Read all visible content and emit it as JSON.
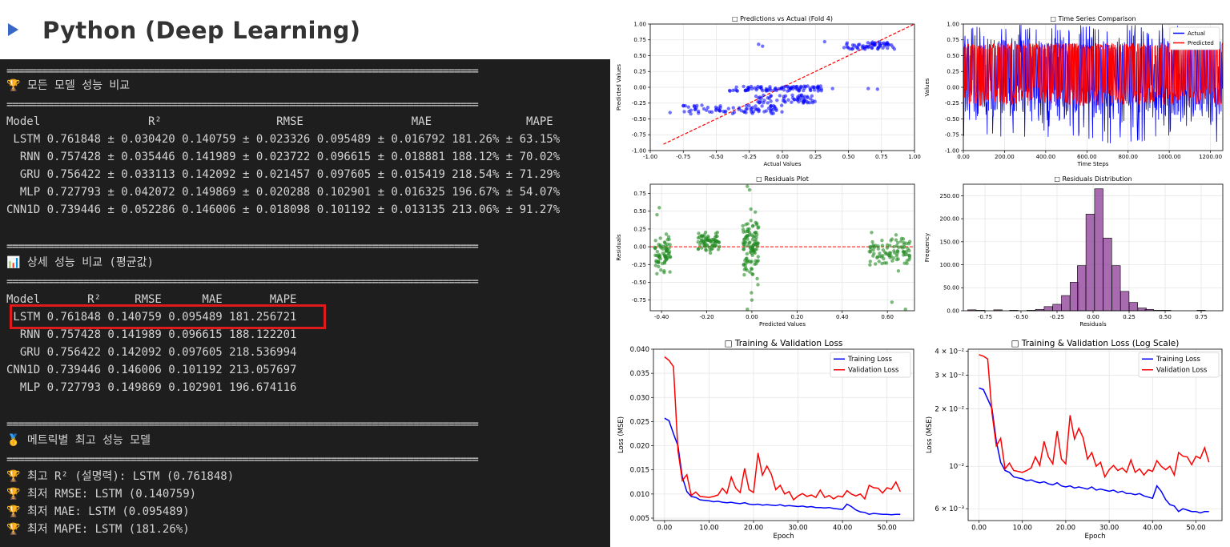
{
  "slide": {
    "title": "Python (Deep Learning)"
  },
  "terminal": {
    "separator": "================================================================================",
    "section1_title": "🏆 모든 모델 성능 비교",
    "table1_header": "Model                R²                 RMSE                MAE              MAPE",
    "table1_rows": [
      " LSTM 0.761848 ± 0.030420 0.140759 ± 0.023326 0.095489 ± 0.016792 181.26% ± 63.15%",
      "  RNN 0.757428 ± 0.035446 0.141989 ± 0.023722 0.096615 ± 0.018881 188.12% ± 70.02%",
      "  GRU 0.756422 ± 0.033113 0.142092 ± 0.021457 0.097605 ± 0.015419 218.54% ± 71.29%",
      "  MLP 0.727793 ± 0.042072 0.149869 ± 0.020288 0.102901 ± 0.016325 196.67% ± 54.07%",
      "CNN1D 0.739446 ± 0.052286 0.146006 ± 0.018098 0.101192 ± 0.013135 213.06% ± 91.27%"
    ],
    "section2_title": "📊 상세 성능 비교 (평균값)",
    "table2_header": "Model       R²     RMSE      MAE       MAPE",
    "table2_rows": [
      " LSTM 0.761848 0.140759 0.095489 181.256721",
      "  RNN 0.757428 0.141989 0.096615 188.122201",
      "  GRU 0.756422 0.142092 0.097605 218.536994",
      "CNN1D 0.739446 0.146006 0.101192 213.057697",
      "  MLP 0.727793 0.149869 0.102901 196.674116"
    ],
    "section3_title": "🥇 메트릭별 최고 성능 모델",
    "best_lines": [
      "🏆 최고 R² (설명력): LSTM (0.761848)",
      "🏆 최저 RMSE: LSTM (0.140759)",
      "🏆 최저 MAE: LSTM (0.095489)",
      "🏆 최저 MAPE: LSTM (181.26%)"
    ]
  },
  "colors": {
    "highlight": "#e0191b",
    "terminal_bg": "#1e1e1e",
    "blue": "#0000ff",
    "red": "#ff0000",
    "green": "#228b22",
    "purple": "#8b3a96"
  },
  "chart_data": [
    {
      "id": "pred-vs-actual",
      "type": "scatter",
      "title": "□ Predictions vs Actual (Fold 4)",
      "xlabel": "Actual Values",
      "ylabel": "Predicted Values",
      "xlim": [
        -1.0,
        1.0
      ],
      "ylim": [
        -1.0,
        1.0
      ],
      "xticks": [
        -1.0,
        -0.75,
        -0.5,
        -0.25,
        0.0,
        0.25,
        0.5,
        0.75,
        1.0
      ],
      "yticks": [
        -1.0,
        -0.75,
        -0.5,
        -0.25,
        0.0,
        0.25,
        0.5,
        0.75,
        1.0
      ],
      "clusters": [
        {
          "x": [
            -0.75,
            0.0
          ],
          "y": [
            -0.42,
            -0.28
          ],
          "n": 80
        },
        {
          "x": [
            -0.4,
            0.3
          ],
          "y": [
            -0.06,
            0.02
          ],
          "n": 90
        },
        {
          "x": [
            -0.2,
            0.25
          ],
          "y": [
            -0.25,
            -0.12
          ],
          "n": 60
        },
        {
          "x": [
            0.45,
            0.85
          ],
          "y": [
            0.6,
            0.72
          ],
          "n": 60
        }
      ],
      "extra_points": [
        [
          -0.85,
          -0.4
        ],
        [
          -0.18,
          0.68
        ],
        [
          -0.15,
          0.65
        ],
        [
          0.32,
          0.72
        ],
        [
          0.38,
          -0.02
        ],
        [
          0.65,
          -0.02
        ],
        [
          0.72,
          -0.03
        ],
        [
          0.28,
          -0.03
        ]
      ],
      "grid": true
    },
    {
      "id": "time-series",
      "type": "line",
      "title": "□ Time Series Comparison",
      "xlabel": "Time Steps",
      "ylabel": "Values",
      "xlim": [
        0,
        1260
      ],
      "ylim": [
        -1.0,
        1.0
      ],
      "xticks": [
        0,
        200,
        400,
        600,
        800,
        1000,
        1200
      ],
      "yticks": [
        -1.0,
        -0.75,
        -0.5,
        -0.25,
        0.0,
        0.25,
        0.5,
        0.75,
        1.0
      ],
      "series": [
        {
          "name": "Actual"
        },
        {
          "name": "Predicted"
        }
      ],
      "legend": "top-right",
      "grid": true
    },
    {
      "id": "residuals-plot",
      "type": "scatter",
      "title": "□ Residuals Plot",
      "xlabel": "Predicted Values",
      "ylabel": "Residuals",
      "xlim": [
        -0.45,
        0.72
      ],
      "ylim": [
        -0.9,
        0.88
      ],
      "xticks": [
        -0.4,
        -0.2,
        0.0,
        0.2,
        0.4,
        0.6
      ],
      "yticks": [
        -0.75,
        -0.5,
        -0.25,
        0.0,
        0.25,
        0.5,
        0.75
      ],
      "clusters": [
        {
          "x": [
            -0.43,
            -0.36
          ],
          "y": [
            -0.35,
            0.15
          ],
          "n": 70
        },
        {
          "x": [
            -0.24,
            -0.14
          ],
          "y": [
            -0.05,
            0.22
          ],
          "n": 70
        },
        {
          "x": [
            -0.04,
            0.03
          ],
          "y": [
            -0.45,
            0.45
          ],
          "n": 110
        },
        {
          "x": [
            0.52,
            0.7
          ],
          "y": [
            -0.3,
            0.2
          ],
          "n": 90
        }
      ],
      "extra_points": [
        [
          -0.42,
          0.45
        ],
        [
          -0.41,
          0.55
        ],
        [
          -0.02,
          0.85
        ],
        [
          -0.01,
          0.8
        ],
        [
          -0.02,
          -0.88
        ],
        [
          0.0,
          -0.75
        ],
        [
          0.68,
          -0.88
        ],
        [
          0.62,
          -0.78
        ],
        [
          0.53,
          0.2
        ]
      ],
      "grid": true
    },
    {
      "id": "residuals-dist",
      "type": "bar",
      "title": "□ Residuals Distribution",
      "xlabel": "Residuals",
      "ylabel": "Frequency",
      "xlim": [
        -0.9,
        0.9
      ],
      "ylim": [
        0,
        275
      ],
      "xticks": [
        -0.75,
        -0.5,
        -0.25,
        0.0,
        0.25,
        0.5,
        0.75
      ],
      "yticks": [
        0,
        50,
        100,
        150,
        200,
        250
      ],
      "bin_width": 0.0588,
      "bins": [
        [
          -0.84,
          2
        ],
        [
          -0.78,
          1
        ],
        [
          -0.72,
          0
        ],
        [
          -0.66,
          2
        ],
        [
          -0.61,
          0
        ],
        [
          -0.55,
          1
        ],
        [
          -0.49,
          0
        ],
        [
          -0.43,
          1
        ],
        [
          -0.37,
          3
        ],
        [
          -0.31,
          9
        ],
        [
          -0.25,
          14
        ],
        [
          -0.19,
          33
        ],
        [
          -0.13,
          62
        ],
        [
          -0.08,
          98
        ],
        [
          -0.02,
          210
        ],
        [
          0.04,
          265
        ],
        [
          0.1,
          158
        ],
        [
          0.16,
          98
        ],
        [
          0.22,
          42
        ],
        [
          0.28,
          18
        ],
        [
          0.34,
          6
        ],
        [
          0.39,
          3
        ],
        [
          0.45,
          1
        ],
        [
          0.51,
          1
        ],
        [
          0.57,
          0
        ],
        [
          0.63,
          0
        ],
        [
          0.69,
          0
        ],
        [
          0.75,
          1
        ]
      ],
      "grid": true
    },
    {
      "id": "loss-linear",
      "type": "line",
      "title": "□ Training & Validation Loss",
      "xlabel": "Epoch",
      "ylabel": "Loss (MSE)",
      "xlim": [
        -2.5,
        56
      ],
      "ylim": [
        0.0045,
        0.04
      ],
      "xticks": [
        0,
        10,
        20,
        30,
        40,
        50
      ],
      "yticks": [
        0.005,
        0.01,
        0.015,
        0.02,
        0.025,
        0.03,
        0.035,
        0.04
      ],
      "yticklabels": [
        "0.005",
        "0.010",
        "0.015",
        "0.020",
        "0.025",
        "0.030",
        "0.035",
        "0.040"
      ],
      "series": [
        {
          "name": "Training Loss",
          "values": [
            0.0257,
            0.0252,
            0.0225,
            0.02,
            0.0135,
            0.0105,
            0.0095,
            0.0093,
            0.0088,
            0.0087,
            0.0086,
            0.0084,
            0.0085,
            0.0083,
            0.0082,
            0.0083,
            0.0081,
            0.008,
            0.0082,
            0.0079,
            0.0078,
            0.0079,
            0.0077,
            0.0078,
            0.0077,
            0.0076,
            0.0078,
            0.0075,
            0.0076,
            0.0075,
            0.0074,
            0.0075,
            0.0073,
            0.0074,
            0.0072,
            0.0072,
            0.0071,
            0.0072,
            0.007,
            0.0069,
            0.0068,
            0.0079,
            0.0074,
            0.0067,
            0.0063,
            0.0062,
            0.0058,
            0.006,
            0.0059,
            0.0058,
            0.0058,
            0.0057,
            0.0058,
            0.0058
          ]
        },
        {
          "name": "Validation Loss",
          "values": [
            0.0384,
            0.0377,
            0.0364,
            0.019,
            0.0128,
            0.014,
            0.0097,
            0.0104,
            0.0095,
            0.0094,
            0.0093,
            0.0095,
            0.0098,
            0.0112,
            0.0101,
            0.0135,
            0.0112,
            0.0103,
            0.0153,
            0.0109,
            0.0103,
            0.0185,
            0.0139,
            0.0158,
            0.0141,
            0.0109,
            0.0118,
            0.01,
            0.0105,
            0.0088,
            0.0096,
            0.0101,
            0.0095,
            0.0098,
            0.0093,
            0.0108,
            0.0093,
            0.0097,
            0.009,
            0.0096,
            0.0094,
            0.0107,
            0.01,
            0.0096,
            0.01,
            0.009,
            0.0118,
            0.0113,
            0.0112,
            0.0102,
            0.0113,
            0.011,
            0.0125,
            0.0105
          ]
        }
      ],
      "legend": "top-right",
      "grid": true
    },
    {
      "id": "loss-log",
      "type": "line",
      "title": "□ Training & Validation Loss (Log Scale)",
      "xlabel": "Epoch",
      "ylabel": "Loss (MSE)",
      "yscale": "log",
      "xlim": [
        -2.5,
        56
      ],
      "ylim": [
        0.0052,
        0.041
      ],
      "xticks": [
        0,
        10,
        20,
        30,
        40,
        50
      ],
      "yticks": [
        0.006,
        0.01,
        0.02,
        0.03,
        0.04
      ],
      "yticklabels": [
        "6 × 10⁻³",
        "10⁻²",
        "2 × 10⁻²",
        "3 × 10⁻²",
        "4 × 10⁻²"
      ],
      "series": [
        {
          "name": "Training Loss",
          "values": [
            0.0257,
            0.0252,
            0.0225,
            0.02,
            0.0135,
            0.0105,
            0.0095,
            0.0093,
            0.0088,
            0.0087,
            0.0086,
            0.0084,
            0.0085,
            0.0083,
            0.0082,
            0.0083,
            0.0081,
            0.008,
            0.0082,
            0.0079,
            0.0078,
            0.0079,
            0.0077,
            0.0078,
            0.0077,
            0.0076,
            0.0078,
            0.0075,
            0.0076,
            0.0075,
            0.0074,
            0.0075,
            0.0073,
            0.0074,
            0.0072,
            0.0072,
            0.0071,
            0.0072,
            0.007,
            0.0069,
            0.0068,
            0.0079,
            0.0074,
            0.0067,
            0.0063,
            0.0062,
            0.0058,
            0.006,
            0.0059,
            0.0058,
            0.0058,
            0.0057,
            0.0058,
            0.0058
          ]
        },
        {
          "name": "Validation Loss",
          "values": [
            0.0384,
            0.0377,
            0.0364,
            0.019,
            0.0128,
            0.014,
            0.0097,
            0.0104,
            0.0095,
            0.0094,
            0.0093,
            0.0095,
            0.0098,
            0.0112,
            0.0101,
            0.0135,
            0.0112,
            0.0103,
            0.0153,
            0.0109,
            0.0103,
            0.0185,
            0.0139,
            0.0158,
            0.0141,
            0.0109,
            0.0118,
            0.01,
            0.0105,
            0.0088,
            0.0096,
            0.0101,
            0.0095,
            0.0098,
            0.0093,
            0.0108,
            0.0093,
            0.0097,
            0.009,
            0.0096,
            0.0094,
            0.0107,
            0.01,
            0.0096,
            0.01,
            0.009,
            0.0118,
            0.0113,
            0.0112,
            0.0102,
            0.0113,
            0.011,
            0.0125,
            0.0105
          ]
        }
      ],
      "legend": "top-right",
      "grid": true
    }
  ]
}
